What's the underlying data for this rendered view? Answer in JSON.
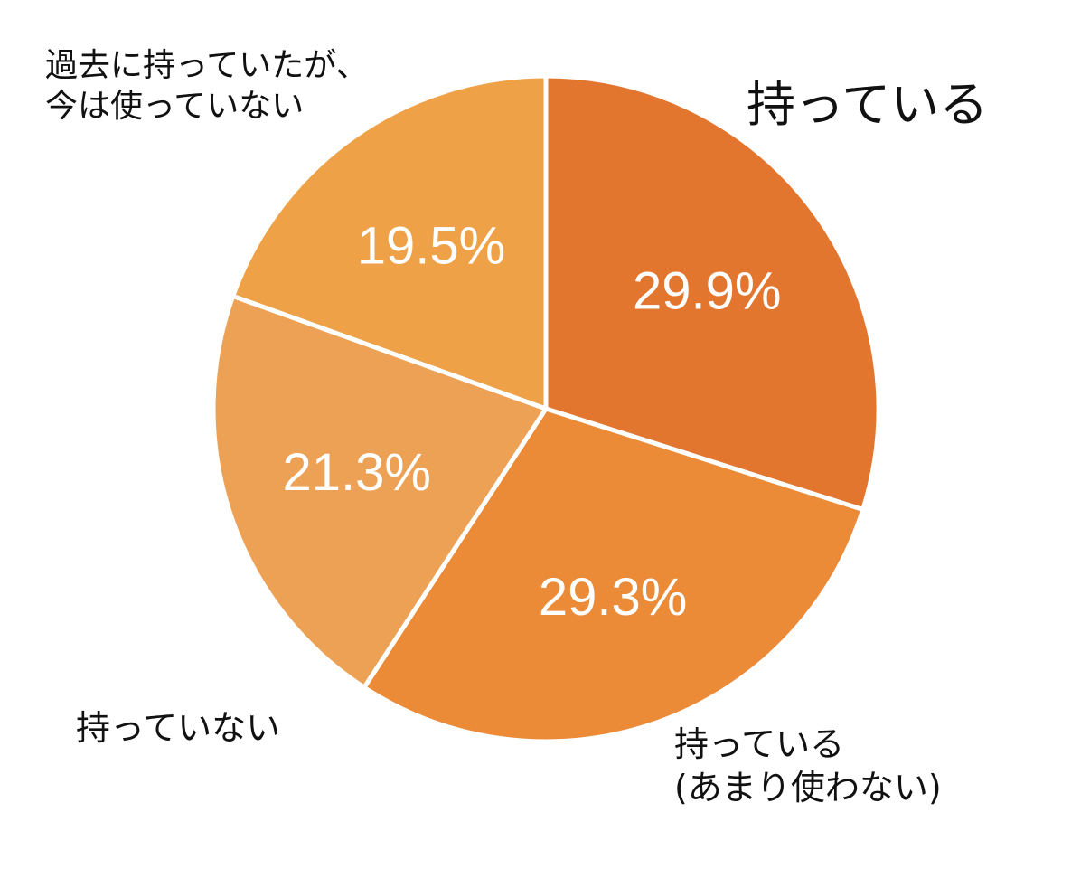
{
  "chart_data": {
    "type": "pie",
    "start_angle_deg": 0,
    "direction": "clockwise",
    "slices": [
      {
        "label": "持っている",
        "value": 29.9,
        "display": "29.9%",
        "color": "#E2762F"
      },
      {
        "label": "持っている\n(あまり使わない)",
        "value": 29.3,
        "display": "29.3%",
        "color": "#EB8A37"
      },
      {
        "label": "持っていない",
        "value": 21.3,
        "display": "21.3%",
        "color": "#EDA155"
      },
      {
        "label": "過去に持っていたが、\n今は使っていない",
        "value": 19.5,
        "display": "19.5%",
        "color": "#EEA146"
      }
    ],
    "separator_color": "#FFFFFF"
  }
}
